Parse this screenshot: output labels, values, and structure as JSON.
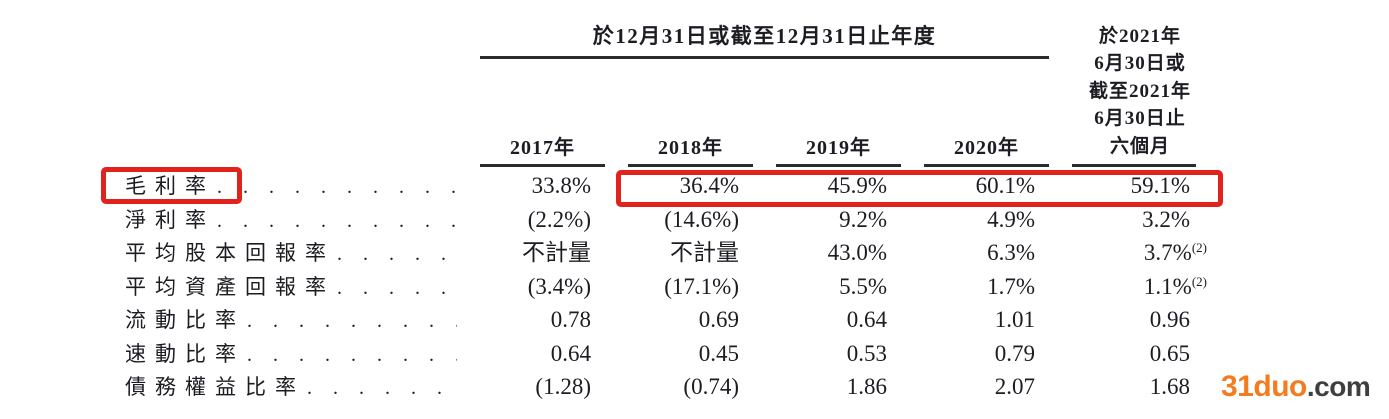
{
  "table": {
    "group_header": "於12月31日或截至12月31日止年度",
    "period_header_lines": [
      "於2021年",
      "6月30日或",
      "截至2021年",
      "6月30日止",
      "六個月"
    ],
    "year_headers": [
      "2017年",
      "2018年",
      "2019年",
      "2020年"
    ],
    "leader_dots": ". . . . . . . . . . . . . . . . . . . . . . . . . . . . . . . . . . . . . . . .",
    "rows": [
      {
        "label": "毛利率",
        "values": [
          "33.8%",
          "36.4%",
          "45.9%",
          "60.1%",
          "59.1%"
        ],
        "sup": ""
      },
      {
        "label": "淨利率",
        "values": [
          "(2.2%)",
          "(14.6%)",
          "9.2%",
          "4.9%",
          "3.2%"
        ],
        "sup": ""
      },
      {
        "label": "平均股本回報率",
        "values": [
          "不計量",
          "不計量",
          "43.0%",
          "6.3%",
          "3.7%"
        ],
        "sup": "(2)"
      },
      {
        "label": "平均資產回報率",
        "values": [
          "(3.4%)",
          "(17.1%)",
          "5.5%",
          "1.7%",
          "1.1%"
        ],
        "sup": "(2)"
      },
      {
        "label": "流動比率",
        "values": [
          "0.78",
          "0.69",
          "0.64",
          "1.01",
          "0.96"
        ],
        "sup": ""
      },
      {
        "label": "速動比率",
        "values": [
          "0.64",
          "0.45",
          "0.53",
          "0.79",
          "0.65"
        ],
        "sup": ""
      },
      {
        "label": "債務權益比率",
        "values": [
          "(1.28)",
          "(0.74)",
          "1.86",
          "2.07",
          "1.68"
        ],
        "sup": ""
      }
    ],
    "highlight_color": "#e0231c",
    "rule_color": "#2b2b2b",
    "text_color": "#1c1c22"
  },
  "watermark": {
    "brand": "31duo",
    "suffix": ".com",
    "brand_color": "#f47c20",
    "suffix_color": "#3f3f3f"
  }
}
